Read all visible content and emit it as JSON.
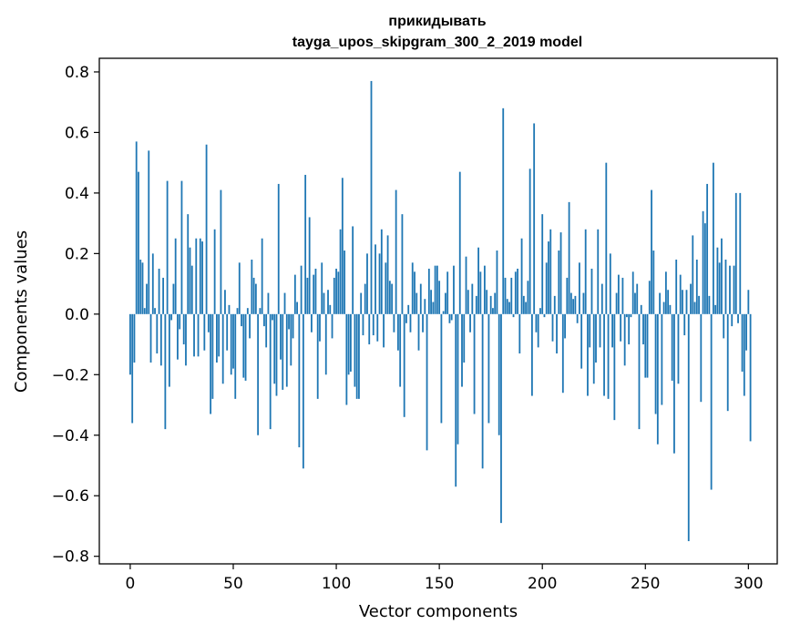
{
  "chart_data": {
    "type": "bar",
    "title_line1": "прикидывать",
    "title_line2": "tayga_upos_skipgram_300_2_2019 model",
    "xlabel": "Vector components",
    "ylabel": "Components values",
    "xlim": [
      -15,
      314
    ],
    "ylim": [
      -0.825,
      0.845
    ],
    "x_ticks": [
      0,
      50,
      100,
      150,
      200,
      250,
      300
    ],
    "x_tick_labels": [
      "0",
      "50",
      "100",
      "150",
      "200",
      "250",
      "300"
    ],
    "y_ticks": [
      -0.8,
      -0.6,
      -0.4,
      -0.2,
      0.0,
      0.2,
      0.4,
      0.6,
      0.8
    ],
    "y_tick_labels": [
      "−0.8",
      "−0.6",
      "−0.4",
      "−0.2",
      "0.0",
      "0.2",
      "0.4",
      "0.6",
      "0.8"
    ],
    "grid": false,
    "bar_color": "#1f77b4",
    "values": [
      -0.2,
      -0.36,
      -0.16,
      0.57,
      0.47,
      0.18,
      0.17,
      0.02,
      0.1,
      0.54,
      -0.16,
      0.2,
      0.02,
      -0.13,
      0.15,
      -0.17,
      0.12,
      -0.38,
      0.44,
      -0.24,
      -0.02,
      0.1,
      0.25,
      -0.15,
      -0.05,
      0.44,
      -0.1,
      -0.17,
      0.33,
      0.22,
      0.16,
      -0.14,
      0.25,
      -0.14,
      0.25,
      0.24,
      -0.12,
      0.56,
      -0.06,
      -0.33,
      -0.28,
      0.28,
      -0.16,
      -0.14,
      0.41,
      -0.23,
      0.08,
      -0.12,
      0.03,
      -0.2,
      -0.18,
      -0.28,
      0.02,
      0.17,
      -0.04,
      -0.21,
      -0.22,
      0.02,
      -0.08,
      0.18,
      0.12,
      0.1,
      -0.4,
      0.02,
      0.25,
      -0.04,
      -0.11,
      0.07,
      -0.38,
      -0.02,
      -0.23,
      -0.27,
      0.43,
      -0.15,
      -0.25,
      0.07,
      -0.24,
      -0.05,
      -0.17,
      -0.08,
      0.13,
      0.04,
      -0.44,
      0.16,
      -0.51,
      0.46,
      0.12,
      0.32,
      -0.06,
      0.13,
      0.15,
      -0.28,
      -0.09,
      0.17,
      0.07,
      -0.2,
      0.08,
      0.03,
      -0.08,
      0.12,
      0.15,
      0.14,
      0.28,
      0.45,
      0.21,
      -0.3,
      -0.2,
      -0.19,
      0.29,
      -0.24,
      -0.28,
      -0.28,
      0.07,
      -0.07,
      0.1,
      0.2,
      -0.1,
      0.77,
      -0.07,
      0.23,
      -0.09,
      0.2,
      0.28,
      -0.11,
      0.17,
      0.26,
      0.11,
      0.1,
      -0.06,
      0.41,
      -0.12,
      -0.24,
      0.33,
      -0.34,
      -0.03,
      0.03,
      -0.06,
      0.17,
      0.14,
      0.07,
      -0.12,
      0.1,
      -0.06,
      0.05,
      -0.45,
      0.15,
      0.08,
      0.04,
      0.16,
      0.16,
      0.11,
      -0.36,
      0.01,
      0.07,
      0.14,
      -0.03,
      -0.02,
      0.16,
      -0.57,
      -0.43,
      0.47,
      -0.24,
      -0.16,
      0.19,
      0.08,
      -0.06,
      0.1,
      -0.33,
      0.06,
      0.22,
      0.14,
      -0.51,
      0.16,
      0.08,
      -0.36,
      0.06,
      0.02,
      0.07,
      0.21,
      -0.4,
      -0.69,
      0.68,
      0.12,
      0.05,
      0.04,
      0.12,
      -0.01,
      0.14,
      0.15,
      -0.13,
      0.25,
      0.06,
      0.04,
      0.11,
      0.48,
      -0.27,
      0.63,
      -0.06,
      -0.11,
      0.02,
      0.33,
      -0.01,
      0.17,
      0.24,
      0.28,
      -0.09,
      0.06,
      -0.13,
      0.21,
      0.27,
      -0.26,
      -0.08,
      0.12,
      0.37,
      0.07,
      0.05,
      0.06,
      -0.03,
      0.17,
      -0.18,
      0.07,
      0.28,
      -0.27,
      -0.11,
      0.15,
      -0.23,
      -0.16,
      0.28,
      -0.11,
      0.1,
      -0.27,
      0.5,
      -0.28,
      0.2,
      -0.11,
      -0.35,
      0.07,
      0.13,
      -0.09,
      0.12,
      -0.17,
      -0.01,
      -0.1,
      -0.01,
      0.14,
      0.07,
      0.1,
      -0.38,
      0.03,
      -0.1,
      -0.21,
      -0.21,
      0.11,
      0.41,
      0.21,
      -0.33,
      -0.43,
      0.07,
      -0.3,
      0.04,
      0.14,
      0.08,
      0.03,
      -0.22,
      -0.46,
      0.18,
      -0.23,
      0.13,
      0.08,
      -0.07,
      0.08,
      -0.75,
      0.1,
      0.26,
      0.04,
      0.18,
      0.06,
      -0.29,
      0.34,
      0.3,
      0.43,
      0.06,
      -0.58,
      0.5,
      0.03,
      0.22,
      0.17,
      0.25,
      -0.08,
      0.18,
      -0.32,
      0.16,
      -0.04,
      0.16,
      0.4,
      -0.03,
      0.4,
      -0.19,
      -0.27,
      -0.12,
      0.08,
      -0.42
    ]
  }
}
